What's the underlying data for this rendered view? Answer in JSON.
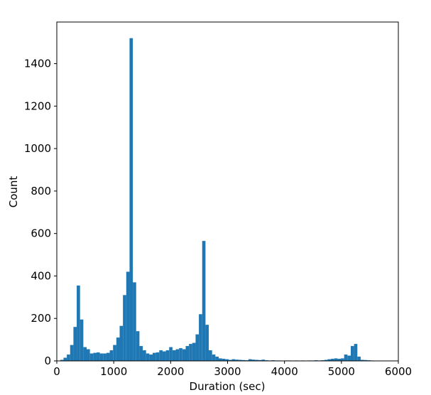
{
  "chart_data": {
    "type": "histogram",
    "xlabel": "Duration (sec)",
    "ylabel": "Count",
    "color": "#1f77b4",
    "bins": [
      60,
      118,
      176,
      234,
      292,
      350,
      408,
      466,
      524,
      582,
      640,
      698,
      756,
      814,
      872,
      930,
      988,
      1046,
      1104,
      1162,
      1220,
      1278,
      1336,
      1394,
      1452,
      1510,
      1568,
      1626,
      1684,
      1742,
      1800,
      1858,
      1916,
      1974,
      2032,
      2090,
      2148,
      2206,
      2264,
      2322,
      2380,
      2438,
      2496,
      2554,
      2612,
      2670,
      2728,
      2786,
      2844,
      2902,
      2960,
      3018,
      3076,
      3134,
      3192,
      3250,
      3308,
      3366,
      3424,
      3482,
      3540,
      3598,
      3656,
      3714,
      3772,
      3830,
      3888,
      3946,
      4004,
      4062,
      4120,
      4178,
      4236,
      4294,
      4352,
      4410,
      4468,
      4526,
      4584,
      4642,
      4700,
      4758,
      4816,
      4874,
      4932,
      4990,
      5048,
      5106,
      5164,
      5222,
      5280,
      5338,
      5396,
      5454,
      5512,
      5570,
      5628,
      5686,
      5744,
      5802,
      5860
    ],
    "counts": [
      5,
      15,
      30,
      75,
      160,
      355,
      195,
      65,
      55,
      35,
      38,
      40,
      35,
      35,
      38,
      50,
      75,
      110,
      165,
      310,
      420,
      1520,
      370,
      140,
      70,
      50,
      35,
      30,
      38,
      40,
      50,
      45,
      50,
      65,
      50,
      55,
      60,
      55,
      70,
      80,
      85,
      125,
      220,
      565,
      170,
      50,
      30,
      20,
      12,
      10,
      8,
      5,
      8,
      6,
      5,
      4,
      3,
      8,
      6,
      5,
      4,
      6,
      3,
      2,
      3,
      2,
      2,
      1,
      2,
      2,
      1,
      2,
      1,
      2,
      1,
      2,
      2,
      3,
      2,
      3,
      5,
      8,
      10,
      12,
      10,
      12,
      30,
      25,
      70,
      80,
      20,
      5,
      4,
      3,
      2,
      1,
      1,
      0,
      1,
      1
    ],
    "xlim": [
      0,
      6000
    ],
    "xticks": [
      0,
      1000,
      2000,
      3000,
      4000,
      5000,
      6000
    ],
    "ylim": [
      0,
      1596
    ],
    "yticks": [
      0,
      200,
      400,
      600,
      800,
      1000,
      1200,
      1400
    ]
  }
}
